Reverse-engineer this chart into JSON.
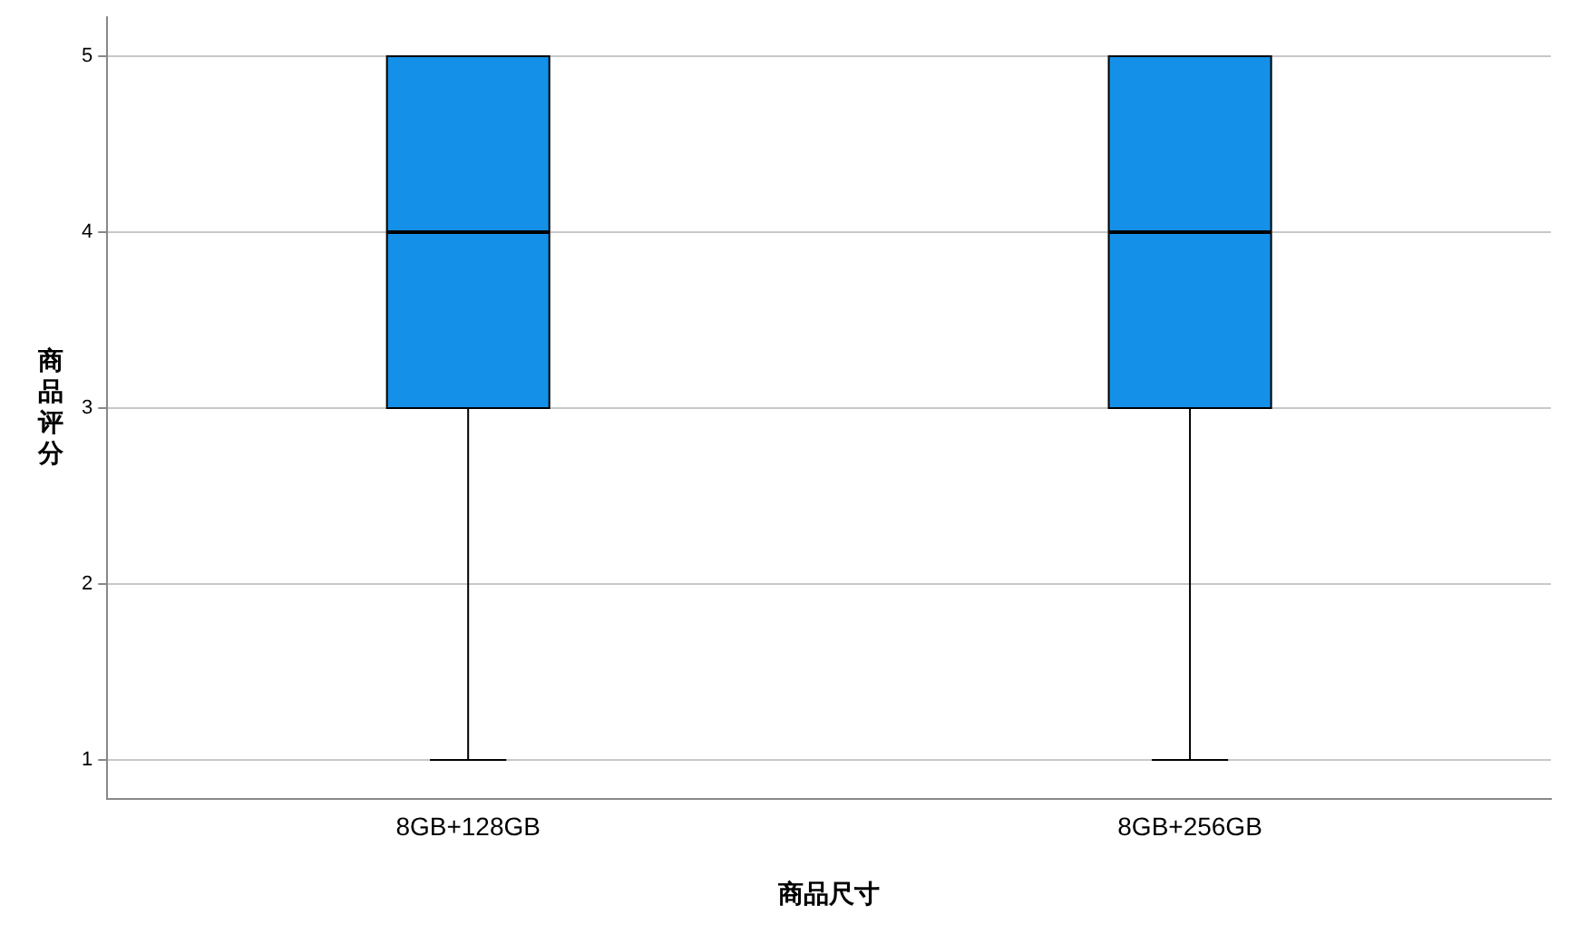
{
  "chart_data": {
    "type": "box",
    "xlabel": "商品尺寸",
    "ylabel": "商品评分",
    "categories": [
      "8GB+128GB",
      "8GB+256GB"
    ],
    "color": "#1490e8",
    "boxes": [
      {
        "low": 1,
        "q1": 3,
        "median": 4,
        "q3": 5,
        "high": 5
      },
      {
        "low": 1,
        "q1": 3,
        "median": 4,
        "q3": 5,
        "high": 5
      }
    ],
    "ylim": [
      0.78,
      5.22
    ],
    "yticks": [
      1,
      2,
      3,
      4,
      5
    ],
    "grid": "y",
    "legend": false
  }
}
